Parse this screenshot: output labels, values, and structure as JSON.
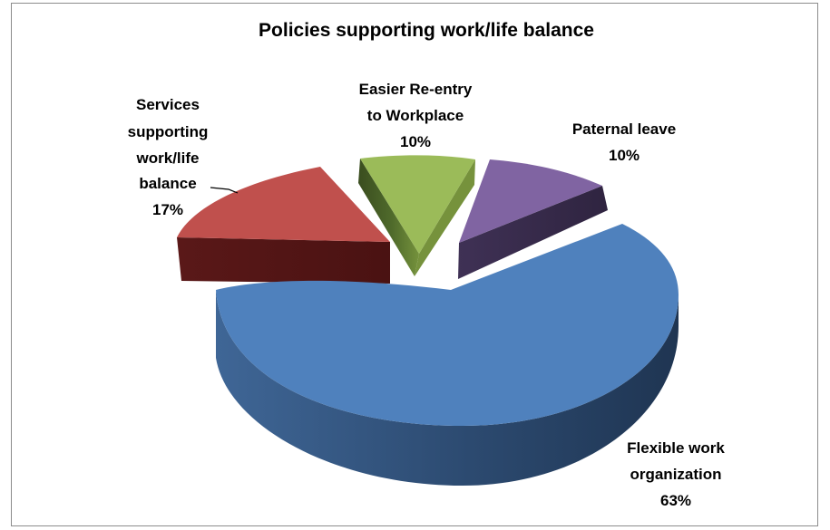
{
  "chart_data": {
    "type": "pie",
    "title": "Policies supporting work/life balance",
    "slices": [
      {
        "label_lines": [
          "Flexible work",
          "organization"
        ],
        "value_text": "63%",
        "value": 63,
        "color": "#4f81bd"
      },
      {
        "label_lines": [
          "Services",
          "supporting",
          "work/life",
          "balance"
        ],
        "value_text": "17%",
        "value": 17,
        "color": "#c0504d"
      },
      {
        "label_lines": [
          "Easier Re-entry",
          "to Workplace"
        ],
        "value_text": "10%",
        "value": 10,
        "color": "#9bbb59"
      },
      {
        "label_lines": [
          "Paternal leave"
        ],
        "value_text": "10%",
        "value": 10,
        "color": "#8064a2"
      }
    ],
    "exploded": true,
    "style": "3d"
  }
}
